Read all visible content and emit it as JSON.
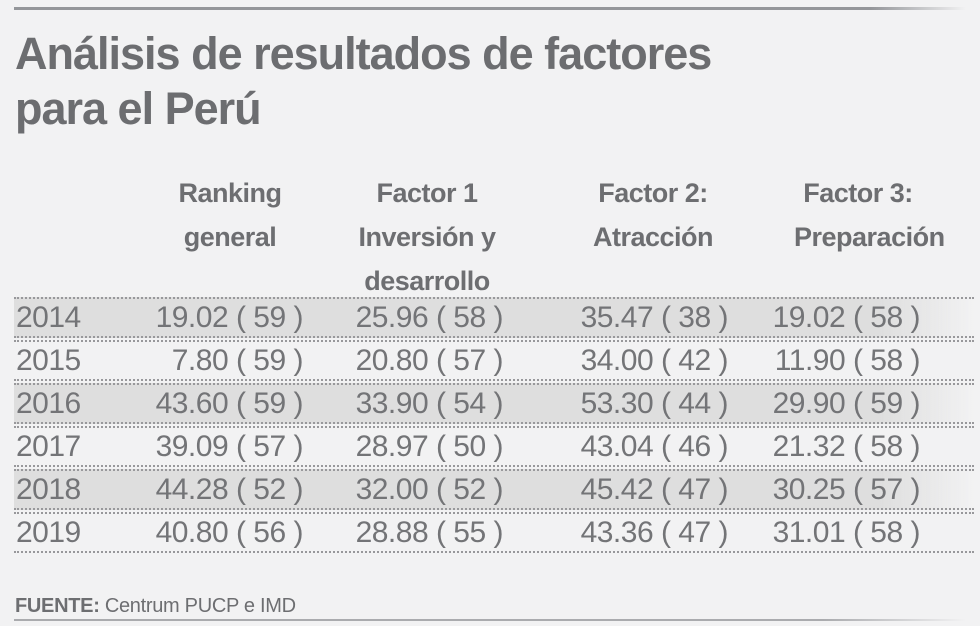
{
  "page": {
    "title_line1": "Análisis de resultados de factores",
    "title_line2": "para el Perú",
    "source_label": "FUENTE:",
    "source_text": "Centrum PUCP e IMD"
  },
  "table": {
    "header_lines": [
      [
        "Ranking",
        "general"
      ],
      [
        "Factor 1",
        "Inversión y",
        "desarrollo"
      ],
      [
        "Factor 2:",
        "Atracción"
      ],
      [
        "Factor 3:",
        "Preparación"
      ]
    ]
  },
  "chart_data": {
    "type": "table",
    "title": "Análisis de resultados de factores para el Perú",
    "columns": [
      "Ranking general",
      "Factor 1 Inversión y desarrollo",
      "Factor 2: Atracción",
      "Factor 3: Preparación"
    ],
    "years": [
      "2014",
      "2015",
      "2016",
      "2017",
      "2018",
      "2019"
    ],
    "series": [
      {
        "name": "Ranking general",
        "scores": [
          19.02,
          7.8,
          43.6,
          39.09,
          44.28,
          40.8
        ],
        "ranks": [
          59,
          59,
          59,
          57,
          52,
          56
        ]
      },
      {
        "name": "Factor 1 Inversión y desarrollo",
        "scores": [
          25.96,
          20.8,
          33.9,
          28.97,
          32.0,
          28.88
        ],
        "ranks": [
          58,
          57,
          54,
          50,
          52,
          55
        ]
      },
      {
        "name": "Factor 2: Atracción",
        "scores": [
          35.47,
          34.0,
          53.3,
          43.04,
          45.42,
          43.36
        ],
        "ranks": [
          38,
          42,
          44,
          46,
          47,
          47
        ]
      },
      {
        "name": "Factor 3: Preparación",
        "scores": [
          19.02,
          11.9,
          29.9,
          21.32,
          30.25,
          31.01
        ],
        "ranks": [
          58,
          58,
          59,
          58,
          57,
          58
        ]
      }
    ],
    "display_rows": [
      {
        "year": "2014",
        "cells": [
          "19.02 ( 59 )",
          "25.96 ( 58 )",
          "35.47 ( 38 )",
          "19.02 ( 58 )"
        ]
      },
      {
        "year": "2015",
        "cells": [
          "7.80 ( 59 )",
          "20.80 ( 57 )",
          "34.00 ( 42 )",
          "11.90 ( 58 )"
        ]
      },
      {
        "year": "2016",
        "cells": [
          "43.60 ( 59 )",
          "33.90 ( 54 )",
          "53.30 ( 44 )",
          "29.90 ( 59 )"
        ]
      },
      {
        "year": "2017",
        "cells": [
          "39.09 ( 57 )",
          "28.97 ( 50 )",
          "43.04 ( 46 )",
          "21.32 ( 58 )"
        ]
      },
      {
        "year": "2018",
        "cells": [
          "44.28 ( 52 )",
          "32.00 ( 52 )",
          "45.42 ( 47 )",
          "30.25 ( 57 )"
        ]
      },
      {
        "year": "2019",
        "cells": [
          "40.80 ( 56 )",
          "28.88 ( 55 )",
          "43.36 ( 47 )",
          "31.01 ( 58 )"
        ]
      }
    ],
    "source": "Centrum PUCP e IMD",
    "colors": {
      "background": "#f2f2f3",
      "band": "#dedede",
      "heading_text": "#6c6d70",
      "value_text": "#737477",
      "dotted_line": "#98989b"
    }
  }
}
